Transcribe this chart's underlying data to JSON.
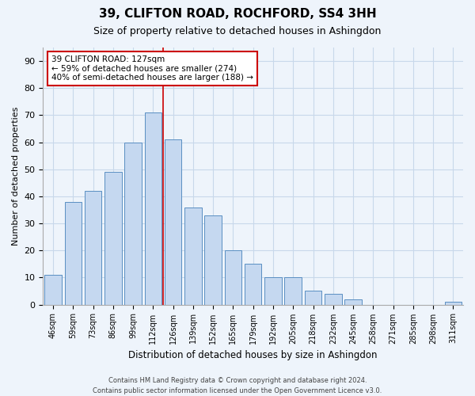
{
  "title": "39, CLIFTON ROAD, ROCHFORD, SS4 3HH",
  "subtitle": "Size of property relative to detached houses in Ashingdon",
  "xlabel": "Distribution of detached houses by size in Ashingdon",
  "ylabel": "Number of detached properties",
  "categories": [
    "46sqm",
    "59sqm",
    "73sqm",
    "86sqm",
    "99sqm",
    "112sqm",
    "126sqm",
    "139sqm",
    "152sqm",
    "165sqm",
    "179sqm",
    "192sqm",
    "205sqm",
    "218sqm",
    "232sqm",
    "245sqm",
    "258sqm",
    "271sqm",
    "285sqm",
    "298sqm",
    "311sqm"
  ],
  "values": [
    11,
    38,
    42,
    49,
    60,
    71,
    61,
    36,
    33,
    20,
    15,
    10,
    10,
    5,
    4,
    2,
    0,
    0,
    0,
    0,
    1
  ],
  "bar_color": "#c5d8f0",
  "bar_edge_color": "#5a8fc2",
  "vline_index": 5.5,
  "property_line_label": "39 CLIFTON ROAD: 127sqm",
  "annotation_line1": "← 59% of detached houses are smaller (274)",
  "annotation_line2": "40% of semi-detached houses are larger (188) →",
  "annotation_box_color": "#ffffff",
  "annotation_box_edge_color": "#cc0000",
  "vline_color": "#cc0000",
  "ylim": [
    0,
    95
  ],
  "yticks": [
    0,
    10,
    20,
    30,
    40,
    50,
    60,
    70,
    80,
    90
  ],
  "grid_color": "#c8d8ea",
  "bg_color": "#eef4fb",
  "footer": "Contains HM Land Registry data © Crown copyright and database right 2024.\nContains public sector information licensed under the Open Government Licence v3.0."
}
